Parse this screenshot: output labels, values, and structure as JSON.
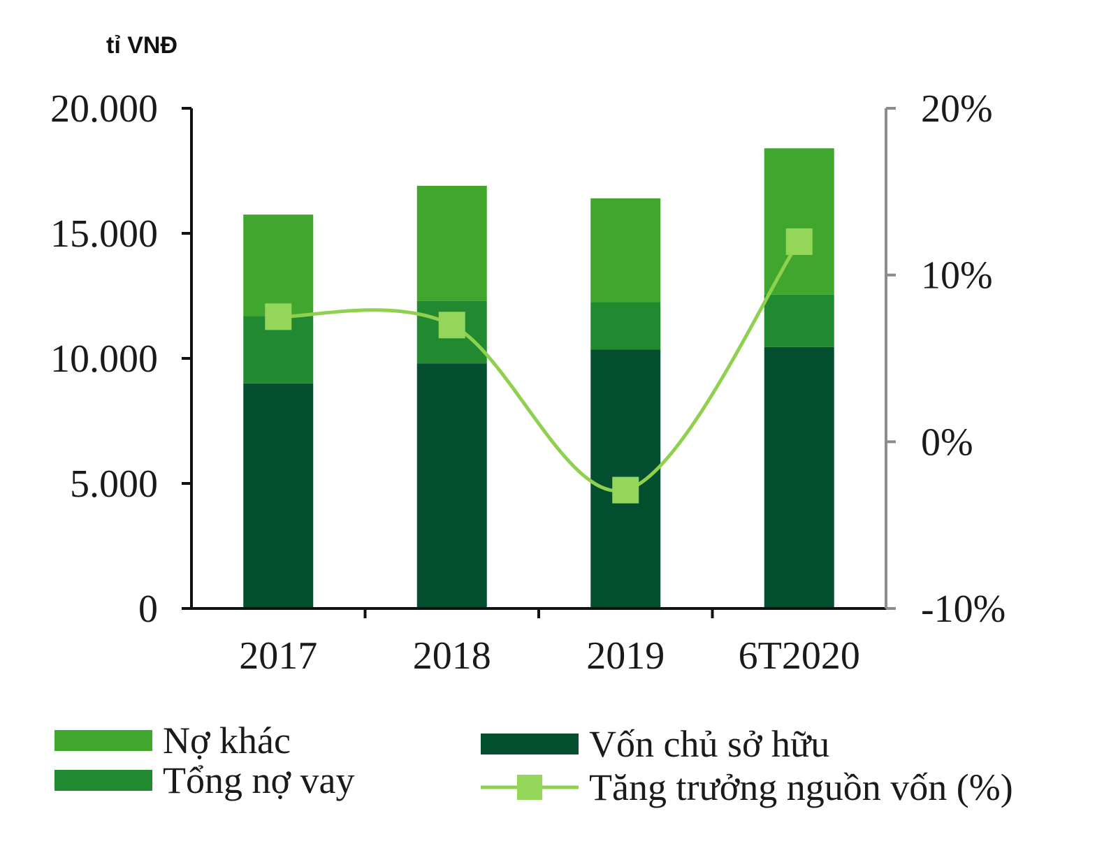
{
  "chart_data": {
    "type": "bar",
    "stacked": true,
    "unit_label": "tỉ VNĐ",
    "categories": [
      "2017",
      "2018",
      "2019",
      "6T2020"
    ],
    "series": [
      {
        "name": "Vốn chủ sở hữu",
        "color": "#034f2f",
        "values": [
          9000,
          9800,
          10350,
          10450
        ]
      },
      {
        "name": "Tổng nợ vay",
        "color": "#218a30",
        "values": [
          2700,
          2500,
          1900,
          2100
        ]
      },
      {
        "name": "Nợ khác",
        "color": "#41a62d",
        "values": [
          4050,
          4600,
          4150,
          5850
        ]
      }
    ],
    "line_series": {
      "name": "Tăng trưởng nguồn vốn (%)",
      "color": "#8fd14f",
      "marker_color": "#93d65a",
      "axis": "right",
      "values": [
        7.5,
        7.0,
        -2.9,
        12.0
      ]
    },
    "y_left": {
      "min": 0,
      "max": 20000,
      "ticks": [
        "0",
        "5.000",
        "10.000",
        "15.000",
        "20.000"
      ]
    },
    "y_right": {
      "min": -10,
      "max": 20,
      "ticks": [
        "-10%",
        "0%",
        "10%",
        "20%"
      ]
    },
    "legend": {
      "placement": "bottom",
      "items": [
        "Nợ khác",
        "Tổng nợ vay",
        "Vốn chủ sở hữu",
        "Tăng trưởng nguồn vốn (%)"
      ]
    }
  }
}
